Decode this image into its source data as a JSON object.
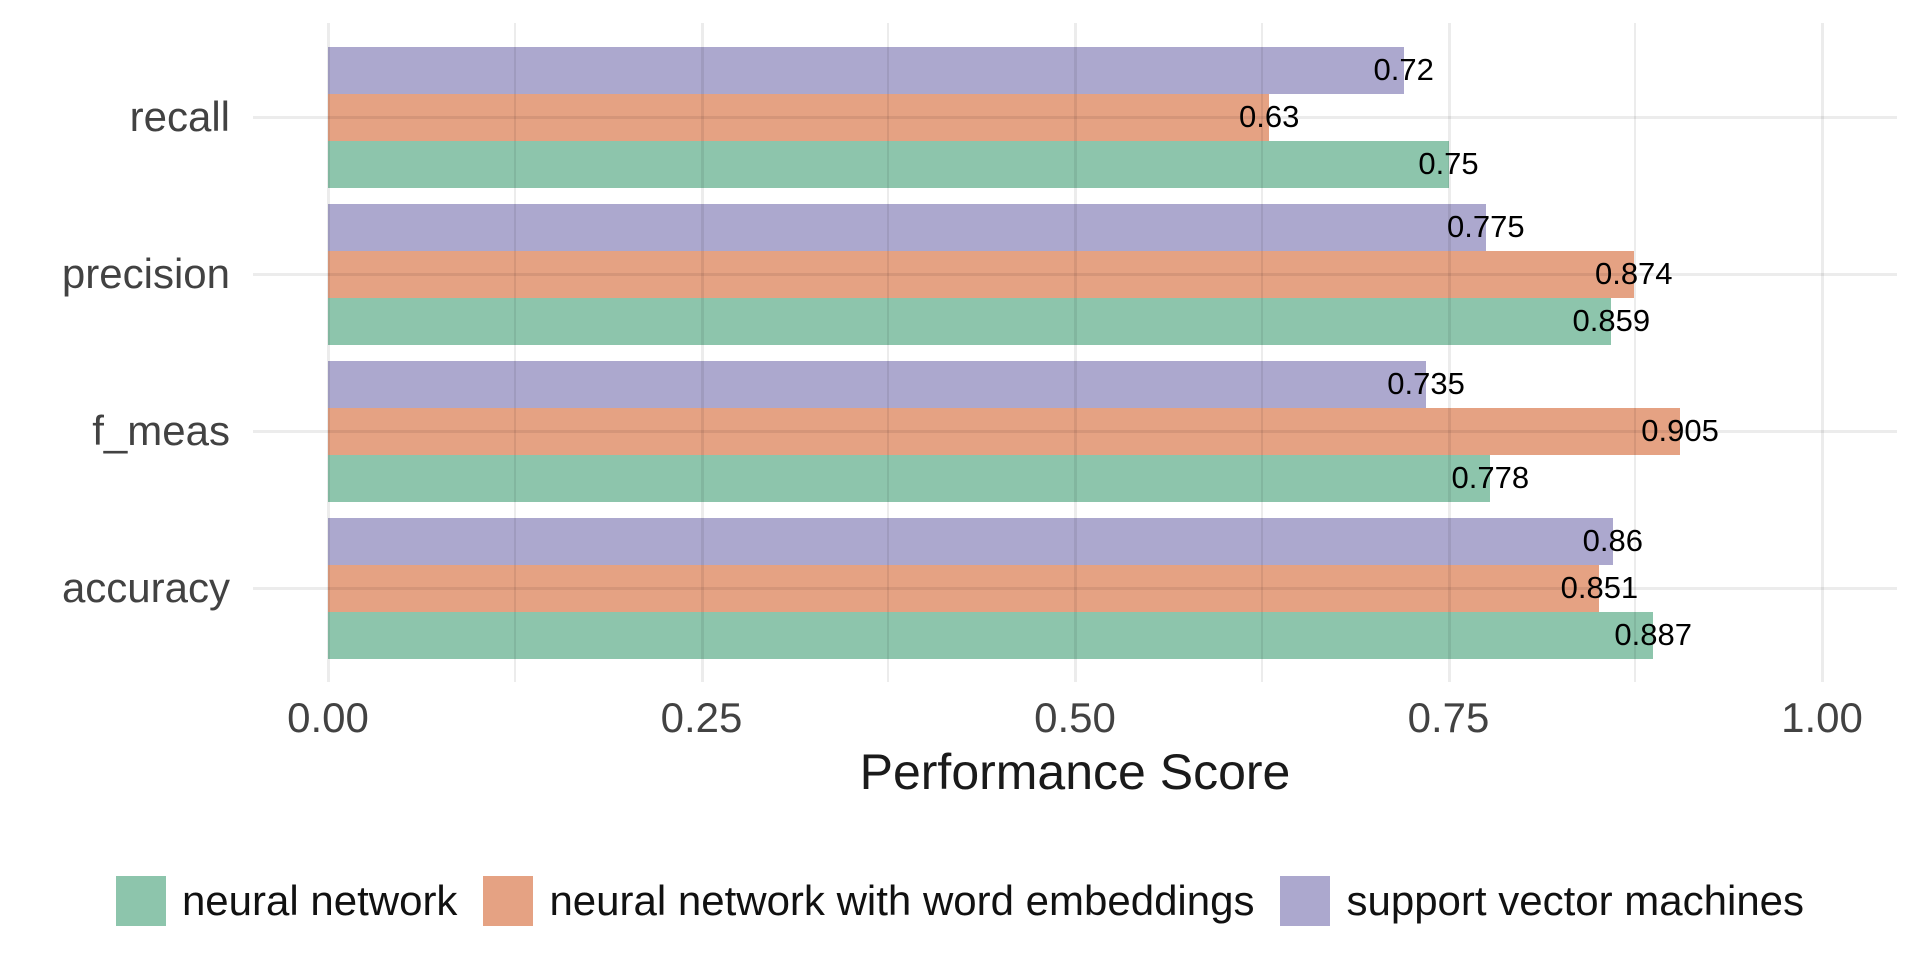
{
  "chart_data": {
    "type": "bar",
    "orientation": "horizontal",
    "title": "",
    "xlabel": "Performance Score",
    "ylabel": "",
    "xlim": [
      0,
      1.05
    ],
    "x_major_ticks": [
      0,
      0.25,
      0.5,
      0.75,
      1.0
    ],
    "x_tick_labels": [
      "0.00",
      "0.25",
      "0.50",
      "0.75",
      "1.00"
    ],
    "x_minor_ticks": [
      0.125,
      0.375,
      0.625,
      0.875
    ],
    "grid": "light gray major+minor vertical gridlines, major horizontal gridlines at category centers, no axis lines",
    "legend_position": "bottom",
    "categories": [
      "recall",
      "precision",
      "f_meas",
      "accuracy"
    ],
    "series": [
      {
        "name": "neural network",
        "color": "#8DC5AC",
        "values": [
          0.75,
          0.859,
          0.778,
          0.887
        ],
        "value_labels": [
          "0.75",
          "0.859",
          "0.778",
          "0.887"
        ]
      },
      {
        "name": "neural network with word embeddings",
        "color": "#E5A283",
        "values": [
          0.63,
          0.874,
          0.905,
          0.851
        ],
        "value_labels": [
          "0.63",
          "0.874",
          "0.905",
          "0.851"
        ]
      },
      {
        "name": "support vector machines",
        "color": "#ACA8CE",
        "values": [
          0.72,
          0.775,
          0.735,
          0.86
        ],
        "value_labels": [
          "0.72",
          "0.775",
          "0.735",
          "0.86"
        ]
      }
    ],
    "bar_order_top_to_bottom": [
      "support vector machines",
      "neural network with word embeddings",
      "neural network"
    ]
  },
  "colors": {
    "background": "#FFFFFF",
    "gridline": "rgba(0,0,0,0.075)",
    "axis_text": "#424242",
    "axis_title": "#1A1A1A",
    "value_label": "#000000",
    "legend_text": "#111111"
  }
}
